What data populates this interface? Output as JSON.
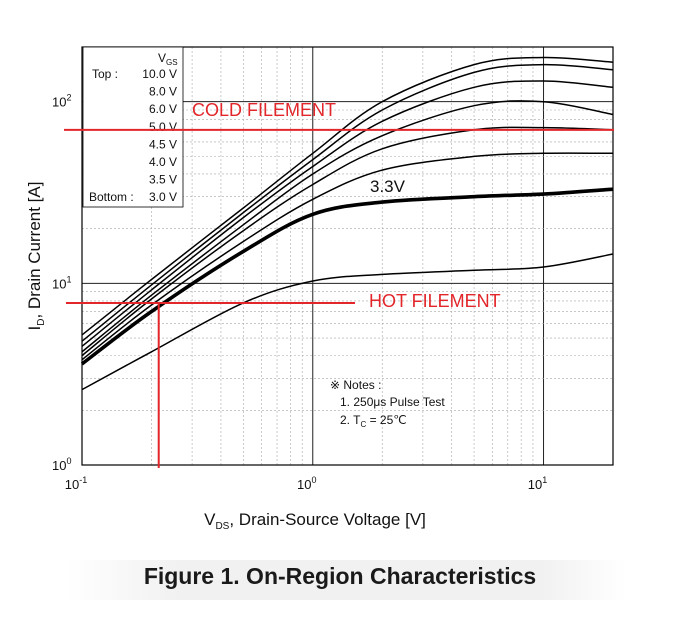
{
  "chart_data": {
    "type": "line",
    "x_scale": "log",
    "y_scale": "log",
    "xlim": [
      0.1,
      20
    ],
    "ylim": [
      1,
      200
    ],
    "xlabel": "V",
    "xlabel_sub": "DS",
    "xlabel_rest": ", Drain-Source Voltage [V]",
    "ylabel": "I",
    "ylabel_sub": "D",
    "ylabel_rest": ", Drain Current [A]",
    "x_ticks": [
      {
        "value": 0.1,
        "base": "10",
        "exp": "-1"
      },
      {
        "value": 1,
        "base": "10",
        "exp": "0"
      },
      {
        "value": 10,
        "base": "10",
        "exp": "1"
      }
    ],
    "y_ticks": [
      {
        "value": 1,
        "base": "10",
        "exp": "0"
      },
      {
        "value": 10,
        "base": "10",
        "exp": "1"
      },
      {
        "value": 100,
        "base": "10",
        "exp": "2"
      }
    ],
    "grid": true,
    "legend": {
      "title": "V",
      "title_sub": "GS",
      "top_label": "Top :",
      "bottom_label": "Bottom :",
      "entries": [
        "10.0 V",
        "8.0 V",
        "6.0 V",
        "5.0 V",
        "4.5 V",
        "4.0 V",
        "3.5 V",
        "3.0 V"
      ],
      "placement": "top-left"
    },
    "series": [
      {
        "vgs": 10.0,
        "x": [
          0.1,
          0.2,
          0.5,
          1,
          2,
          5,
          10,
          20
        ],
        "y": [
          5.2,
          10.5,
          26,
          52,
          100,
          160,
          175,
          165
        ]
      },
      {
        "vgs": 8.0,
        "x": [
          0.1,
          0.2,
          0.5,
          1,
          2,
          5,
          10,
          20
        ],
        "y": [
          4.8,
          9.8,
          24.5,
          48,
          90,
          145,
          160,
          150
        ]
      },
      {
        "vgs": 6.0,
        "x": [
          0.1,
          0.2,
          0.5,
          1,
          2,
          5,
          10,
          20
        ],
        "y": [
          4.5,
          9.2,
          23,
          44,
          78,
          120,
          130,
          120
        ]
      },
      {
        "vgs": 5.0,
        "x": [
          0.1,
          0.2,
          0.5,
          1,
          2,
          5,
          10,
          20
        ],
        "y": [
          4.2,
          8.6,
          21,
          40,
          65,
          95,
          100,
          85
        ]
      },
      {
        "vgs": 4.5,
        "x": [
          0.1,
          0.2,
          0.5,
          1,
          2,
          5,
          10,
          20
        ],
        "y": [
          4.0,
          8.2,
          19.5,
          35,
          55,
          70,
          72,
          70
        ]
      },
      {
        "vgs": 4.0,
        "x": [
          0.1,
          0.2,
          0.5,
          1,
          2,
          5,
          10,
          20
        ],
        "y": [
          3.8,
          7.6,
          17,
          29,
          42,
          50,
          52,
          52
        ]
      },
      {
        "vgs": 3.5,
        "x": [
          0.1,
          0.2,
          0.5,
          1,
          2,
          5,
          10,
          20
        ],
        "y": [
          3.6,
          7.0,
          15,
          24,
          28,
          30,
          31,
          33
        ]
      },
      {
        "vgs": 3.0,
        "x": [
          0.1,
          0.2,
          0.5,
          1,
          2,
          5,
          10,
          20
        ],
        "y": [
          2.6,
          4.2,
          7.8,
          10.3,
          11.2,
          11.8,
          12.3,
          14.5
        ]
      }
    ],
    "highlight_series_vgs": 3.5,
    "notes": {
      "title": "※ Notes :",
      "line1": "1. 250μs Pulse Test",
      "line2_pre": "2. T",
      "line2_sub": "C",
      "line2_post": " = 25℃"
    },
    "annotations": {
      "series_label": "3.3V",
      "cold_label": "COLD FILEMENT",
      "hot_label": "HOT FILEMENT",
      "cold_y": 70,
      "hot_y": 7.8,
      "hot_x": 0.215,
      "color": "#e2262a"
    }
  },
  "caption": "Figure 1. On-Region Characteristics"
}
